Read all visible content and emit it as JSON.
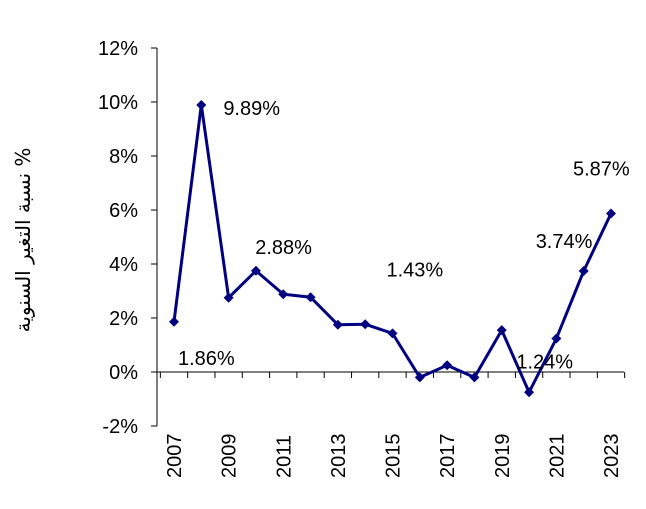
{
  "chart_data": {
    "type": "line",
    "title": "",
    "xlabel": "",
    "ylabel": "نسبة التغير السنوية %",
    "x": [
      2007,
      2008,
      2009,
      2010,
      2011,
      2012,
      2013,
      2014,
      2015,
      2016,
      2017,
      2018,
      2019,
      2020,
      2021,
      2022,
      2023
    ],
    "x_tick_labels": [
      "2007",
      "2009",
      "2011",
      "2013",
      "2015",
      "2017",
      "2019",
      "2021",
      "2023"
    ],
    "y_tick_labels": [
      "12%",
      "10%",
      "8%",
      "6%",
      "4%",
      "2%",
      "0%",
      "-2%"
    ],
    "ylim": [
      -2,
      12
    ],
    "y_ticks": [
      12,
      10,
      8,
      6,
      4,
      2,
      0,
      -2
    ],
    "grid": false,
    "series": [
      {
        "values": [
          1.86,
          9.89,
          2.75,
          3.75,
          2.88,
          2.77,
          1.75,
          1.77,
          1.43,
          -0.2,
          0.25,
          -0.2,
          1.55,
          -0.75,
          1.24,
          3.74,
          5.87
        ],
        "color": "#000080"
      }
    ],
    "annotations": [
      {
        "year": 2007,
        "text": "1.86%"
      },
      {
        "year": 2008,
        "text": "9.89%"
      },
      {
        "year": 2011,
        "text": "2.88%"
      },
      {
        "year": 2015,
        "text": "1.43%"
      },
      {
        "year": 2021,
        "text": "1.24%"
      },
      {
        "year": 2022,
        "text": "3.74%"
      },
      {
        "year": 2023,
        "text": "5.87%"
      }
    ]
  }
}
